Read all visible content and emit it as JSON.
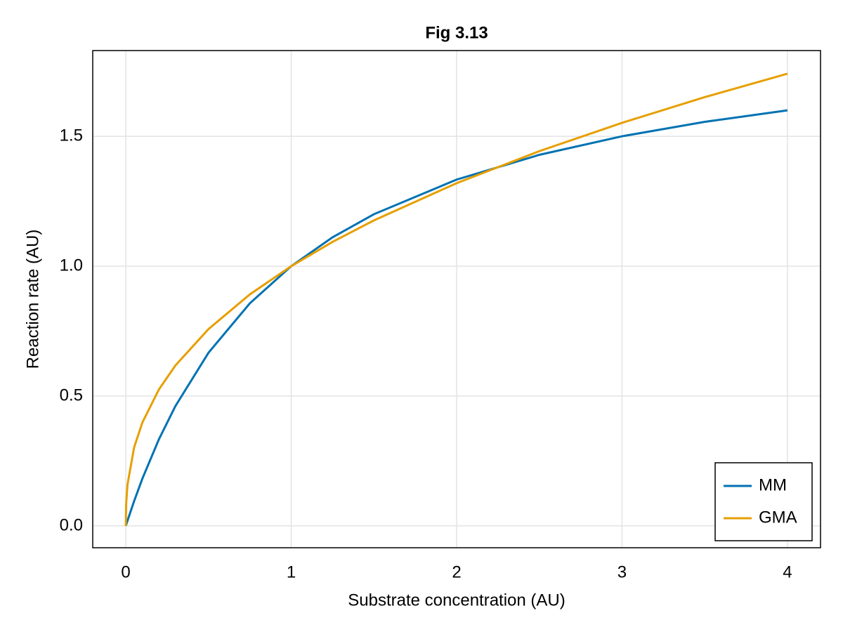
{
  "chart_data": {
    "type": "line",
    "title": "Fig 3.13",
    "x_label": "Substrate concentration (AU)",
    "y_label": "Reaction rate (AU)",
    "x": [
      0,
      0.002,
      0.01,
      0.05,
      0.1,
      0.2,
      0.3,
      0.5,
      0.75,
      1,
      1.25,
      1.5,
      2,
      2.5,
      3,
      3.5,
      4
    ],
    "series": [
      {
        "name": "MM",
        "color": "#0072b2",
        "values": [
          0,
          0.004,
          0.0198,
          0.0952,
          0.1818,
          0.3333,
          0.4615,
          0.6667,
          0.8571,
          1,
          1.1111,
          1.2,
          1.3333,
          1.4286,
          1.5,
          1.5556,
          1.6
        ]
      },
      {
        "name": "GMA",
        "color": "#e69f00",
        "values": [
          0,
          0.0832,
          0.1585,
          0.3017,
          0.3981,
          0.5253,
          0.6178,
          0.7579,
          0.8913,
          1,
          1.0934,
          1.1761,
          1.3195,
          1.4427,
          1.5518,
          1.6506,
          1.7411
        ]
      }
    ],
    "xlim": [
      -0.2,
      4.2
    ],
    "ylim": [
      -0.084,
      1.83
    ],
    "xticks": [
      0,
      1,
      2,
      3,
      4
    ],
    "yticks": [
      {
        "value": 0,
        "label": "0.0"
      },
      {
        "value": 0.5,
        "label": "0.5"
      },
      {
        "value": 1,
        "label": "1.0"
      },
      {
        "value": 1.5,
        "label": "1.5"
      }
    ],
    "grid": true,
    "legend": "lower right"
  }
}
